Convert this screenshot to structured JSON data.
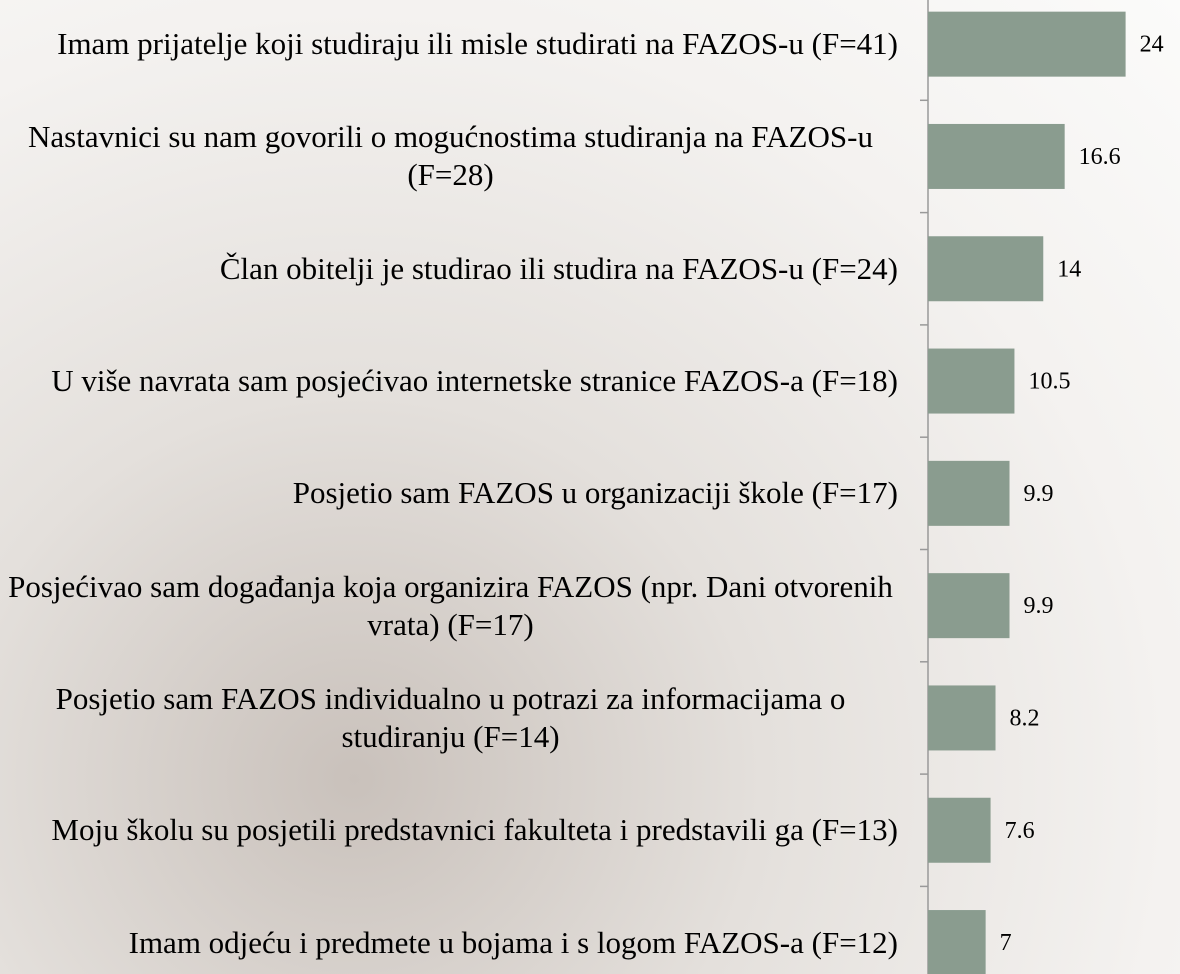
{
  "chart_data": {
    "type": "bar",
    "orientation": "horizontal",
    "categories": [
      "Imam prijatelje koji studiraju ili misle studirati na FAZOS-u (F=41)",
      "Nastavnici su nam govorili o mogućnostima studiranja na FAZOS-u (F=28)",
      "Član obitelji je studirao ili studira na FAZOS-u (F=24)",
      "U više navrata sam posjećivao internetske stranice FAZOS-a (F=18)",
      "Posjetio sam FAZOS u organizaciji škole (F=17)",
      "Posjećivao sam događanja koja organizira FAZOS (npr. Dani otvorenih vrata) (F=17)",
      "Posjetio sam FAZOS individualno u potrazi za informacijama o studiranju (F=14)",
      "Moju školu su posjetili predstavnici fakulteta i predstavili ga (F=13)",
      "Imam odjeću i predmete u bojama i s logom FAZOS-a (F=12)"
    ],
    "values": [
      24,
      16.6,
      14,
      10.5,
      9.9,
      9.9,
      8.2,
      7.6,
      7
    ],
    "color": "#8a9c8f",
    "xlim": [
      0,
      30
    ]
  }
}
